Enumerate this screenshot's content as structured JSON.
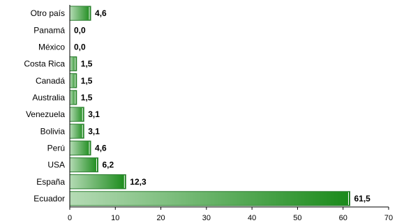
{
  "chart_data": {
    "type": "bar",
    "orientation": "horizontal",
    "categories": [
      "Otro país",
      "Panamá",
      "México",
      "Costa Rica",
      "Canadá",
      "Australia",
      "Venezuela",
      "Bolivia",
      "Perú",
      "USA",
      "España",
      "Ecuador"
    ],
    "values": [
      4.6,
      0.0,
      0.0,
      1.5,
      1.5,
      1.5,
      3.1,
      3.1,
      4.6,
      6.2,
      12.3,
      61.5
    ],
    "data_labels": [
      "4,6",
      "0,0",
      "0,0",
      "1,5",
      "1,5",
      "1,5",
      "3,1",
      "3,1",
      "4,6",
      "6,2",
      "12,3",
      "61,5"
    ],
    "xlim": [
      0,
      70
    ],
    "xticks": [
      "0",
      "10",
      "20",
      "30",
      "40",
      "50",
      "60",
      "70"
    ],
    "grid": false,
    "bar_color_light": "#b5dbb5",
    "bar_color_dark": "#1a8a1a",
    "bar_border": "#2e7d32"
  }
}
